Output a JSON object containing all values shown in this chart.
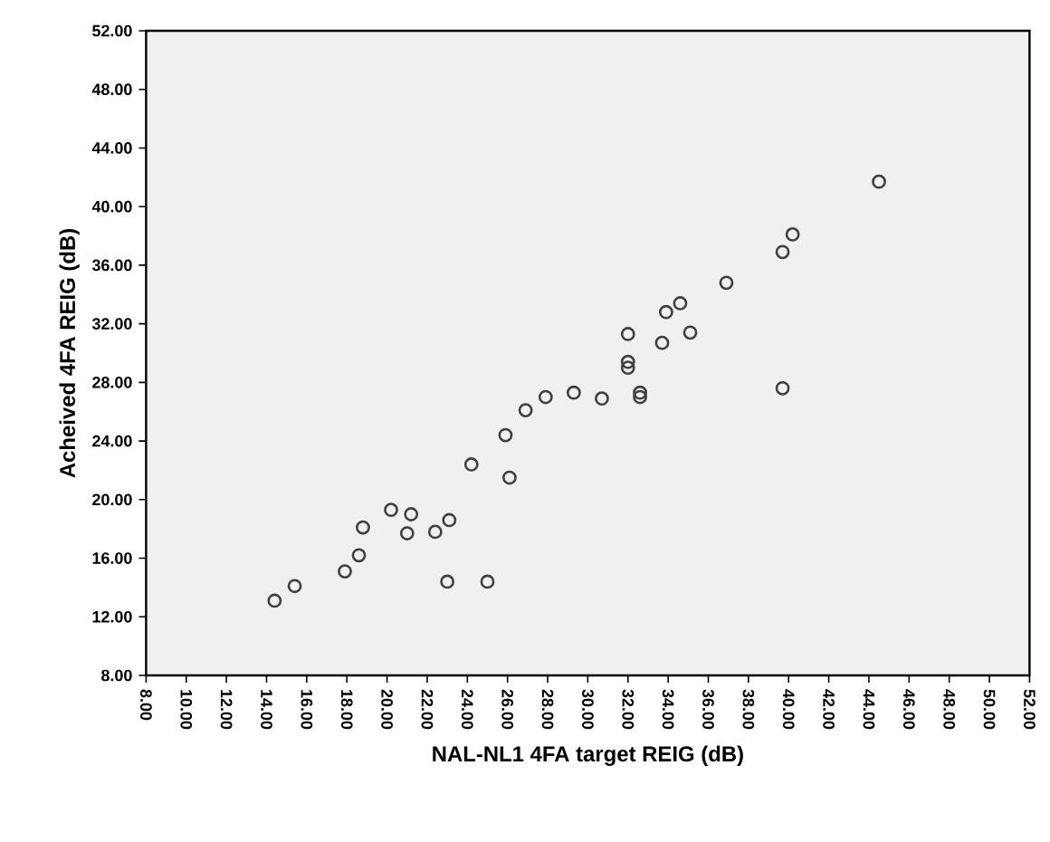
{
  "chart_data": {
    "type": "scatter",
    "xlabel": "NAL-NL1 4FA target REIG (dB)",
    "ylabel": "Acheived 4FA REIG (dB)",
    "x": [
      44.5,
      40.2,
      39.7,
      36.9,
      34.6,
      33.9,
      32.0,
      33.7,
      35.1,
      32.0,
      32.0,
      32.6,
      32.6,
      39.7,
      30.7,
      29.3,
      27.9,
      26.9,
      25.9,
      26.1,
      24.2,
      20.2,
      21.2,
      18.8,
      21.0,
      22.4,
      23.1,
      18.6,
      17.9,
      15.4,
      14.4,
      23.0,
      25.0
    ],
    "values": [
      41.7,
      38.1,
      36.9,
      34.8,
      33.4,
      32.8,
      31.3,
      30.7,
      31.4,
      29.4,
      29.0,
      27.3,
      27.0,
      27.6,
      26.9,
      27.3,
      27.0,
      26.1,
      24.4,
      21.5,
      22.4,
      19.3,
      19.0,
      18.1,
      17.7,
      17.8,
      18.6,
      16.2,
      15.1,
      14.1,
      13.1,
      14.4,
      14.4
    ],
    "color": "#404040",
    "marker": "circle",
    "xlim": [
      8,
      52
    ],
    "ylim": [
      8,
      52
    ],
    "xticks": [
      {
        "value": 8,
        "label": "8.00"
      },
      {
        "value": 10,
        "label": "10.00"
      },
      {
        "value": 12,
        "label": "12.00"
      },
      {
        "value": 14,
        "label": "14.00"
      },
      {
        "value": 16,
        "label": "16.00"
      },
      {
        "value": 18,
        "label": "18.00"
      },
      {
        "value": 20,
        "label": "20.00"
      },
      {
        "value": 22,
        "label": "22.00"
      },
      {
        "value": 24,
        "label": "24.00"
      },
      {
        "value": 26,
        "label": "26.00"
      },
      {
        "value": 28,
        "label": "28.00"
      },
      {
        "value": 30,
        "label": "30.00"
      },
      {
        "value": 32,
        "label": "32.00"
      },
      {
        "value": 34,
        "label": "34.00"
      },
      {
        "value": 36,
        "label": "36.00"
      },
      {
        "value": 38,
        "label": "38.00"
      },
      {
        "value": 40,
        "label": "40.00"
      },
      {
        "value": 42,
        "label": "42.00"
      },
      {
        "value": 44,
        "label": "44.00"
      },
      {
        "value": 46,
        "label": "46.00"
      },
      {
        "value": 48,
        "label": "48.00"
      },
      {
        "value": 50,
        "label": "50.00"
      },
      {
        "value": 52,
        "label": "52.00"
      }
    ],
    "yticks": [
      {
        "value": 8,
        "label": "8.00"
      },
      {
        "value": 12,
        "label": "12.00"
      },
      {
        "value": 16,
        "label": "16.00"
      },
      {
        "value": 20,
        "label": "20.00"
      },
      {
        "value": 24,
        "label": "24.00"
      },
      {
        "value": 28,
        "label": "28.00"
      },
      {
        "value": 32,
        "label": "32.00"
      },
      {
        "value": 36,
        "label": "36.00"
      },
      {
        "value": 40,
        "label": "40.00"
      },
      {
        "value": 44,
        "label": "44.00"
      },
      {
        "value": 48,
        "label": "48.00"
      },
      {
        "value": 52,
        "label": "52.00"
      }
    ]
  }
}
